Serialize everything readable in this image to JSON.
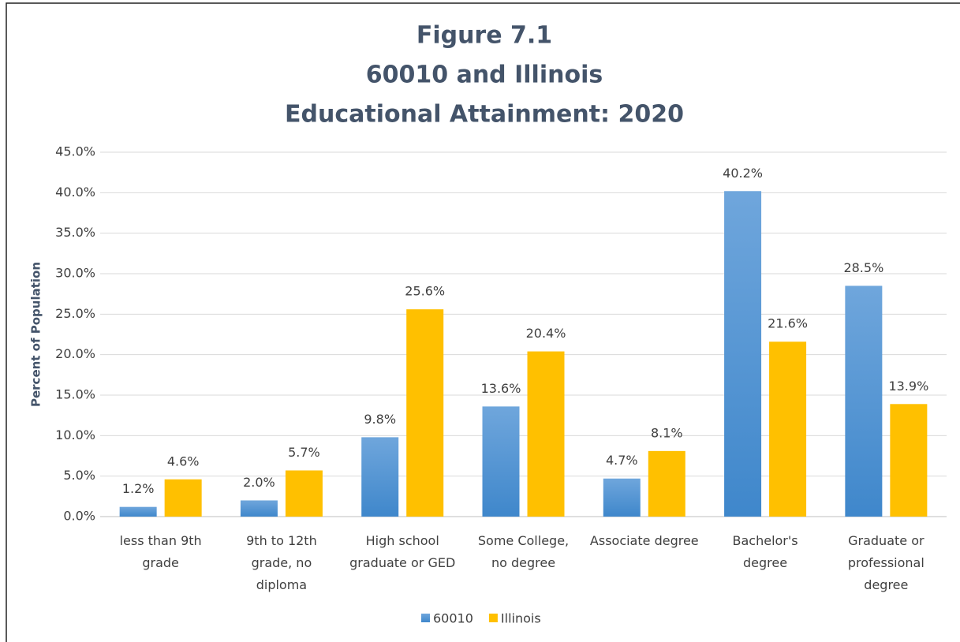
{
  "chart_data": {
    "type": "bar",
    "title": [
      "Figure 7.1",
      "60010 and Illinois",
      "Educational Attainment: 2020"
    ],
    "y_label": "Percent of Population",
    "categories": [
      "less than 9th grade",
      "9th to 12th grade, no diploma",
      "High school graduate or GED",
      "Some College, no degree",
      "Associate degree",
      "Bachelor's degree",
      "Graduate or professional degree"
    ],
    "series": [
      {
        "name": "60010",
        "color": "#5b9bd5",
        "values": [
          1.2,
          2.0,
          9.8,
          13.6,
          4.7,
          40.2,
          28.5
        ],
        "value_labels": [
          "1.2%",
          "2.0%",
          "9.8%",
          "13.6%",
          "4.7%",
          "40.2%",
          "28.5%"
        ]
      },
      {
        "name": "Illinois",
        "color": "#ffc000",
        "values": [
          4.6,
          5.7,
          25.6,
          20.4,
          8.1,
          21.6,
          13.9
        ],
        "value_labels": [
          "4.6%",
          "5.7%",
          "25.6%",
          "20.4%",
          "8.1%",
          "21.6%",
          "13.9%"
        ]
      }
    ],
    "ylim": [
      0,
      45
    ],
    "yticks": [
      {
        "value": 0,
        "label": "0.0%"
      },
      {
        "value": 5,
        "label": "5.0%"
      },
      {
        "value": 10,
        "label": "10.0%"
      },
      {
        "value": 15,
        "label": "15.0%"
      },
      {
        "value": 20,
        "label": "20.0%"
      },
      {
        "value": 25,
        "label": "25.0%"
      },
      {
        "value": 30,
        "label": "30.0%"
      },
      {
        "value": 35,
        "label": "35.0%"
      },
      {
        "value": 40,
        "label": "40.0%"
      },
      {
        "value": 45,
        "label": "45.0%"
      }
    ],
    "grid": true,
    "legend": "bottom"
  }
}
